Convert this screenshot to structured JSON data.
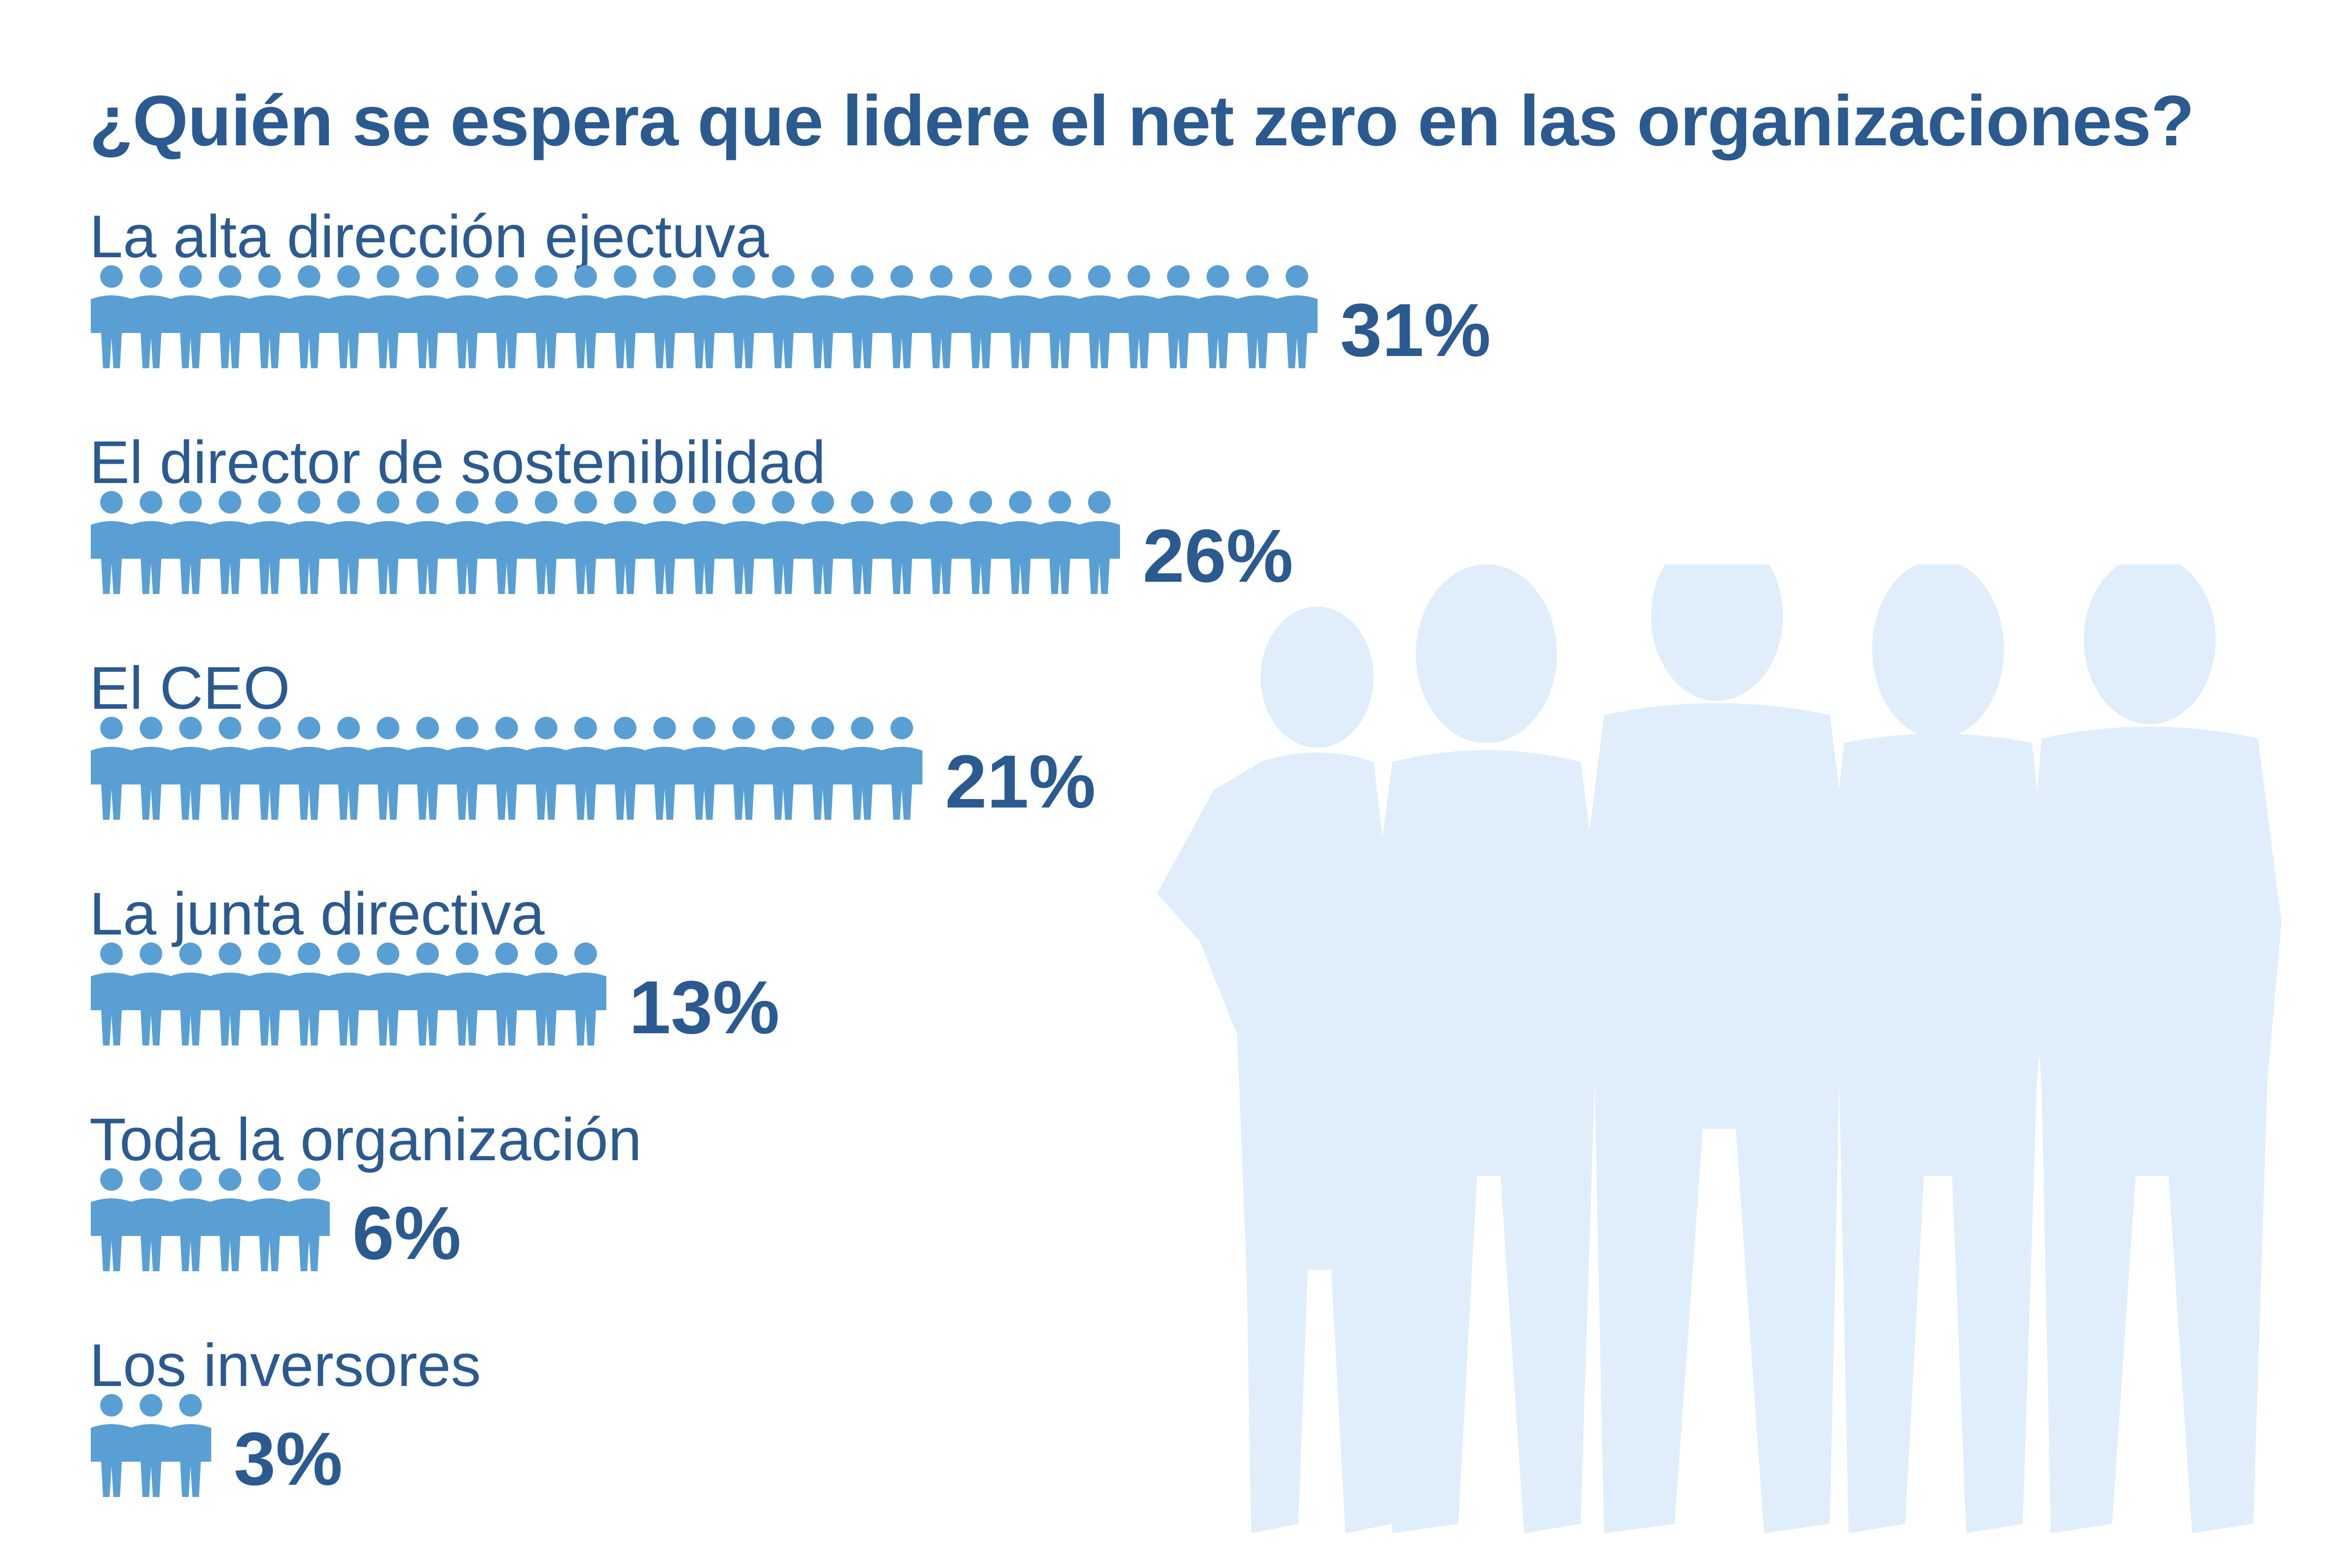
{
  "title": "¿Quién se espera que lidere el net zero en las organizaciones?",
  "chart_data": {
    "type": "bar",
    "title": "¿Quién se espera que lidere el net zero en las organizaciones?",
    "unit": "%",
    "categories": [
      "La alta dirección ejectuva",
      "El director de sostenibilidad",
      "El CEO",
      "La junta directiva",
      "Toda la organización",
      "Los inversores"
    ],
    "values": [
      31,
      26,
      21,
      13,
      6,
      3
    ],
    "value_labels": [
      "31%",
      "26%",
      "21%",
      "13%",
      "6%",
      "3%"
    ]
  },
  "colors": {
    "title": "#2b5a91",
    "icon": "#5a9fd4",
    "silhouette": "#dfeefa"
  },
  "icons": {
    "person": "person-icon",
    "background": "business-people-silhouette-icon"
  }
}
